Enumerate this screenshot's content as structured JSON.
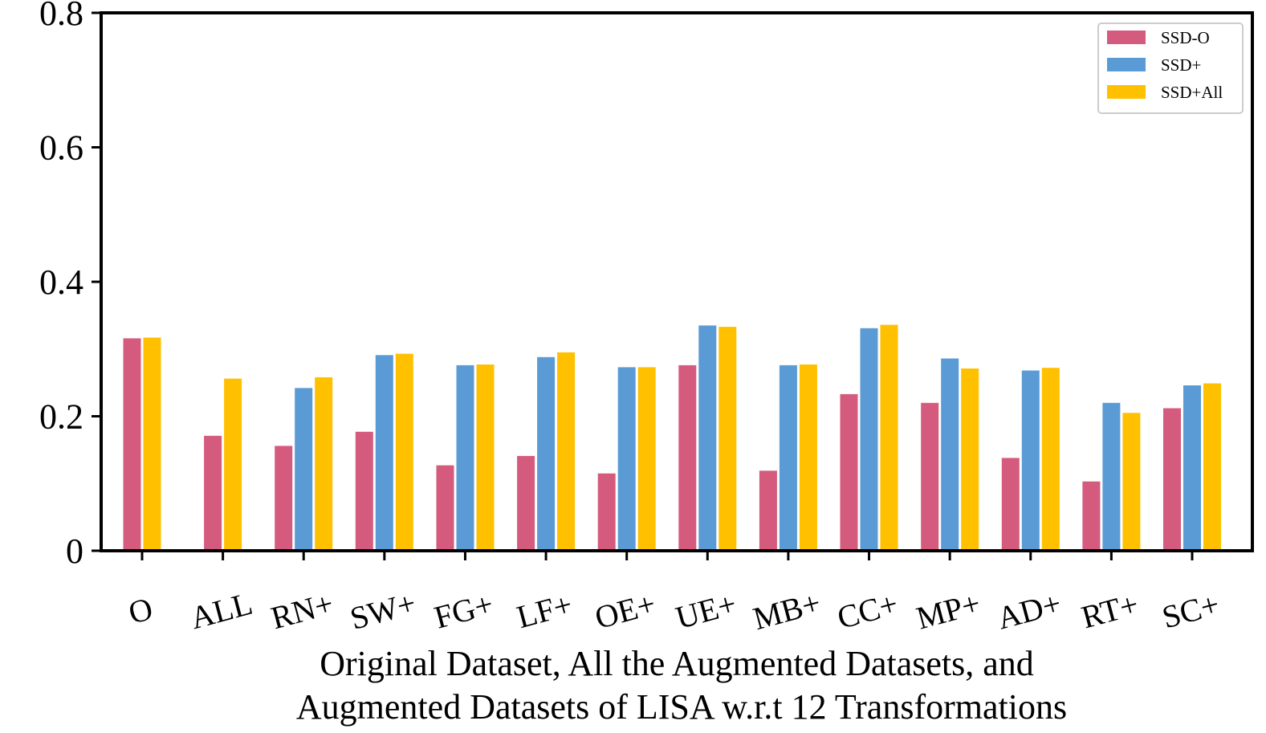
{
  "chart_data": {
    "type": "bar",
    "categories": [
      "O",
      "ALL",
      "RN+",
      "SW+",
      "FG+",
      "LF+",
      "OE+",
      "UE+",
      "MB+",
      "CC+",
      "MP+",
      "AD+",
      "RT+",
      "SC+"
    ],
    "series": [
      {
        "name": "SSD-O",
        "color": "#d45b7e",
        "values": [
          0.316,
          0.171,
          0.156,
          0.177,
          0.127,
          0.141,
          0.115,
          0.276,
          0.119,
          0.233,
          0.22,
          0.138,
          0.103,
          0.212
        ]
      },
      {
        "name": "SSD+",
        "color": "#5b9bd5",
        "values": [
          null,
          null,
          0.242,
          0.291,
          0.276,
          0.288,
          0.273,
          0.335,
          0.276,
          0.331,
          0.286,
          0.268,
          0.22,
          0.246
        ]
      },
      {
        "name": "SSD+All",
        "color": "#ffc000",
        "values": [
          0.317,
          0.256,
          0.258,
          0.293,
          0.277,
          0.295,
          0.273,
          0.333,
          0.277,
          0.336,
          0.271,
          0.272,
          0.205,
          0.249
        ]
      }
    ],
    "title": "",
    "xlabel": "Original Dataset, All the Augmented Datasets, and Augmented Datasets of LISA w.r.t 12 Transformations",
    "xlabel_lines": [
      "Original Dataset, All the Augmented Datasets, and",
      "Augmented Datasets of LISA w.r.t 12 Transformations"
    ],
    "ylabel": "",
    "ylim": [
      0,
      0.8
    ],
    "yticks": [
      0,
      0.2,
      0.4,
      0.6,
      0.8
    ],
    "ytick_labels": [
      "0",
      "0.2",
      "0.4",
      "0.6",
      "0.8"
    ],
    "grid": false,
    "legend_position": "top-right"
  }
}
